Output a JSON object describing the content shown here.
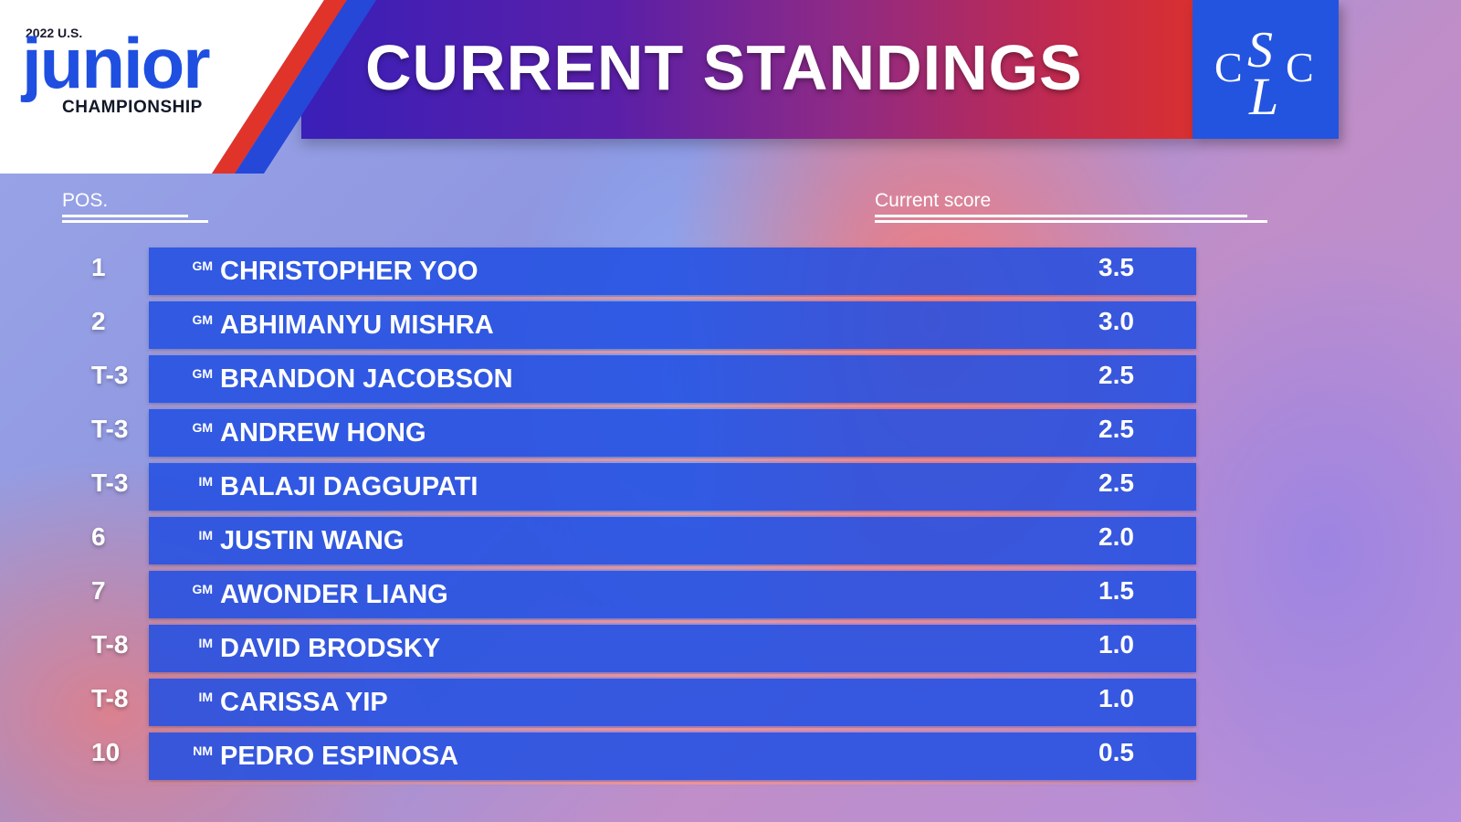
{
  "header": {
    "event_year": "2022 U.S.",
    "event_name": "junior",
    "event_subtitle": "CHAMPIONSHIP",
    "title": "CURRENT STANDINGS",
    "org_logo_text": "CSLC"
  },
  "columns": {
    "position": "POS.",
    "score": "Current score"
  },
  "standings": [
    {
      "pos": "1",
      "title": "GM",
      "name": "CHRISTOPHER YOO",
      "score": "3.5"
    },
    {
      "pos": "2",
      "title": "GM",
      "name": "ABHIMANYU MISHRA",
      "score": "3.0"
    },
    {
      "pos": "T-3",
      "title": "GM",
      "name": "BRANDON JACOBSON",
      "score": "2.5"
    },
    {
      "pos": "T-3",
      "title": "GM",
      "name": "ANDREW HONG",
      "score": "2.5"
    },
    {
      "pos": "T-3",
      "title": "IM",
      "name": "BALAJI DAGGUPATI",
      "score": "2.5"
    },
    {
      "pos": "6",
      "title": "IM",
      "name": "JUSTIN WANG",
      "score": "2.0"
    },
    {
      "pos": "7",
      "title": "GM",
      "name": "AWONDER LIANG",
      "score": "1.5"
    },
    {
      "pos": "T-8",
      "title": "IM",
      "name": "DAVID BRODSKY",
      "score": "1.0"
    },
    {
      "pos": "T-8",
      "title": "IM",
      "name": "CARISSA YIP",
      "score": "1.0"
    },
    {
      "pos": "10",
      "title": "NM",
      "name": "PEDRO ESPINOSA",
      "score": "0.5"
    }
  ],
  "colors": {
    "accent_blue": "#2354e0",
    "accent_red": "#e0342a",
    "row_blue": "#2350e1"
  }
}
